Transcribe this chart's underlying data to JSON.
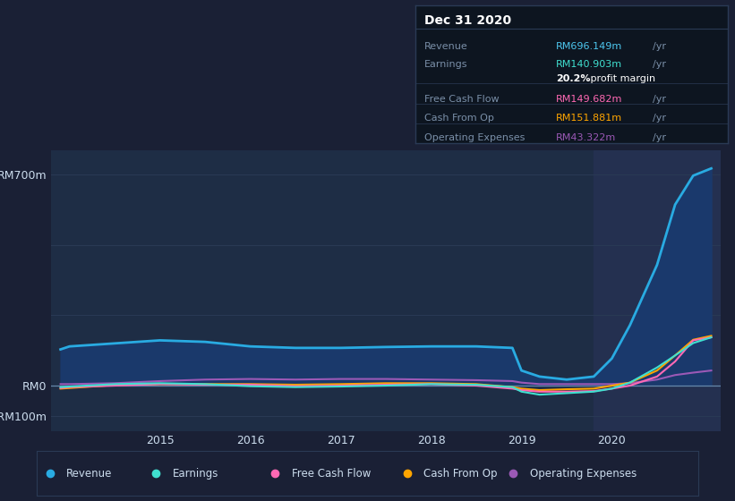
{
  "background_color": "#1a2035",
  "plot_background_color": "#1e2d45",
  "highlight_background_color": "#243050",
  "grid_color": "#2a3a55",
  "text_color": "#ccddee",
  "y_tick_labels": [
    "-RM100m",
    "RM0",
    "RM700m"
  ],
  "y_lim": [
    -150,
    780
  ],
  "x_lim": [
    2013.8,
    2021.2
  ],
  "info_box_title": "Dec 31 2020",
  "info_box_rows": [
    {
      "label": "Revenue",
      "value": "RM696.149m",
      "value_color": "#4dc8f0"
    },
    {
      "label": "Earnings",
      "value": "RM140.903m",
      "value_color": "#40e0d0"
    },
    {
      "label": "",
      "value": "20.2%",
      "value_color": "#ffffff",
      "suffix": " profit margin"
    },
    {
      "label": "Free Cash Flow",
      "value": "RM149.682m",
      "value_color": "#ff69b4"
    },
    {
      "label": "Cash From Op",
      "value": "RM151.881m",
      "value_color": "#ffa500"
    },
    {
      "label": "Operating Expenses",
      "value": "RM43.322m",
      "value_color": "#9b59b6"
    }
  ],
  "series": {
    "revenue": {
      "color": "#29abe2",
      "fill_color": "#1a3a6e",
      "label": "Revenue",
      "x": [
        2013.9,
        2014.0,
        2014.5,
        2015.0,
        2015.5,
        2016.0,
        2016.5,
        2017.0,
        2017.5,
        2018.0,
        2018.5,
        2018.9,
        2019.0,
        2019.2,
        2019.5,
        2019.8,
        2020.0,
        2020.2,
        2020.5,
        2020.7,
        2020.9,
        2021.1
      ],
      "y": [
        120,
        130,
        140,
        150,
        145,
        130,
        125,
        125,
        128,
        130,
        130,
        125,
        50,
        30,
        20,
        30,
        90,
        200,
        400,
        600,
        696,
        720
      ]
    },
    "earnings": {
      "color": "#40e0d0",
      "label": "Earnings",
      "x": [
        2013.9,
        2014.0,
        2014.5,
        2015.0,
        2015.5,
        2016.0,
        2016.5,
        2017.0,
        2017.5,
        2018.0,
        2018.5,
        2018.9,
        2019.0,
        2019.2,
        2019.5,
        2019.8,
        2020.0,
        2020.2,
        2020.5,
        2020.7,
        2020.9,
        2021.1
      ],
      "y": [
        -5,
        -3,
        5,
        8,
        5,
        -2,
        -5,
        -3,
        0,
        5,
        3,
        -5,
        -20,
        -30,
        -25,
        -20,
        -10,
        10,
        60,
        100,
        141,
        160
      ]
    },
    "free_cash_flow": {
      "color": "#ff69b4",
      "label": "Free Cash Flow",
      "x": [
        2013.9,
        2014.0,
        2014.5,
        2015.0,
        2015.5,
        2016.0,
        2016.5,
        2017.0,
        2017.5,
        2018.0,
        2018.5,
        2018.9,
        2019.0,
        2019.2,
        2019.5,
        2019.8,
        2020.0,
        2020.2,
        2020.5,
        2020.7,
        2020.9,
        2021.1
      ],
      "y": [
        -8,
        -5,
        0,
        5,
        3,
        3,
        -2,
        0,
        3,
        5,
        0,
        -10,
        -15,
        -20,
        -20,
        -18,
        -10,
        0,
        30,
        80,
        150,
        160
      ]
    },
    "cash_from_op": {
      "color": "#ffa500",
      "label": "Cash From Op",
      "x": [
        2013.9,
        2014.0,
        2014.5,
        2015.0,
        2015.5,
        2016.0,
        2016.5,
        2017.0,
        2017.5,
        2018.0,
        2018.5,
        2018.9,
        2019.0,
        2019.2,
        2019.5,
        2019.8,
        2020.0,
        2020.2,
        2020.5,
        2020.7,
        2020.9,
        2021.1
      ],
      "y": [
        -10,
        -8,
        2,
        5,
        5,
        5,
        3,
        5,
        8,
        8,
        5,
        -5,
        -10,
        -15,
        -12,
        -10,
        0,
        10,
        50,
        100,
        152,
        165
      ]
    },
    "operating_expenses": {
      "color": "#9b59b6",
      "label": "Operating Expenses",
      "x": [
        2013.9,
        2014.0,
        2014.5,
        2015.0,
        2015.5,
        2016.0,
        2016.5,
        2017.0,
        2017.5,
        2018.0,
        2018.5,
        2018.9,
        2019.0,
        2019.2,
        2019.5,
        2019.8,
        2020.0,
        2020.2,
        2020.5,
        2020.7,
        2020.9,
        2021.1
      ],
      "y": [
        5,
        5,
        8,
        15,
        20,
        22,
        20,
        22,
        22,
        20,
        18,
        15,
        10,
        5,
        5,
        5,
        5,
        8,
        20,
        35,
        43,
        50
      ]
    }
  },
  "legend": [
    {
      "label": "Revenue",
      "color": "#29abe2"
    },
    {
      "label": "Earnings",
      "color": "#40e0d0"
    },
    {
      "label": "Free Cash Flow",
      "color": "#ff69b4"
    },
    {
      "label": "Cash From Op",
      "color": "#ffa500"
    },
    {
      "label": "Operating Expenses",
      "color": "#9b59b6"
    }
  ],
  "highlight_x_start": 2019.8,
  "highlight_x_end": 2021.2
}
